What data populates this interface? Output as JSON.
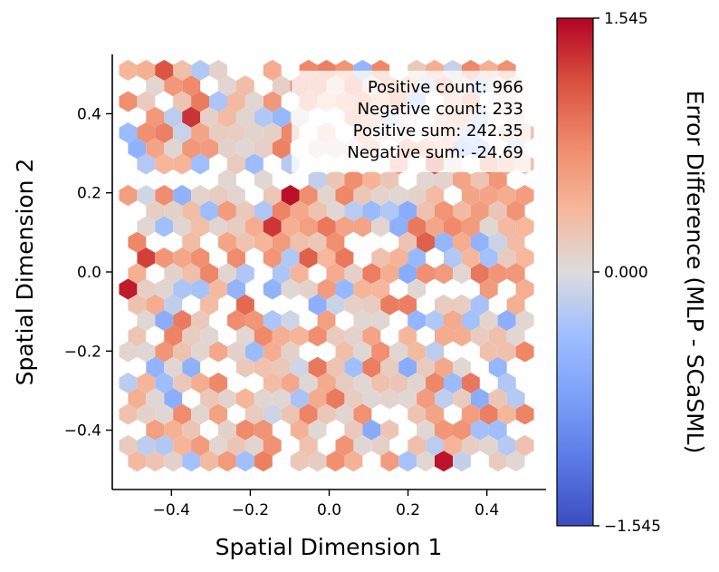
{
  "chart_data": {
    "type": "heatmap",
    "subtype": "hexbin",
    "xlabel": "Spatial Dimension 1",
    "ylabel": "Spatial Dimension 2",
    "xlim": [
      -0.55,
      0.55
    ],
    "ylim": [
      -0.55,
      0.55
    ],
    "xticks": [
      -0.4,
      -0.2,
      0.0,
      0.2,
      0.4
    ],
    "xtick_labels": [
      "−0.4",
      "−0.2",
      "0.0",
      "0.2",
      "0.4"
    ],
    "yticks": [
      -0.4,
      -0.2,
      0.0,
      0.2,
      0.4
    ],
    "ytick_labels": [
      "−0.4",
      "−0.2",
      "0.0",
      "0.2",
      "0.4"
    ],
    "colorbar": {
      "label": "Error Difference (MLP - SCaSML)",
      "min": -1.545,
      "max": 1.545,
      "ticks": [
        1.545,
        0.0,
        -1.545
      ],
      "tick_labels": [
        "1.545",
        "0.000",
        "−1.545"
      ],
      "colormap": "coolwarm",
      "low_color": "#3b4cc0",
      "mid_color": "#dddddd",
      "high_color": "#b40426"
    },
    "annotations": [
      "Positive count: 966",
      "Negative count: 233",
      "Positive sum: 242.35",
      "Negative sum: -24.69"
    ],
    "grid": false
  }
}
